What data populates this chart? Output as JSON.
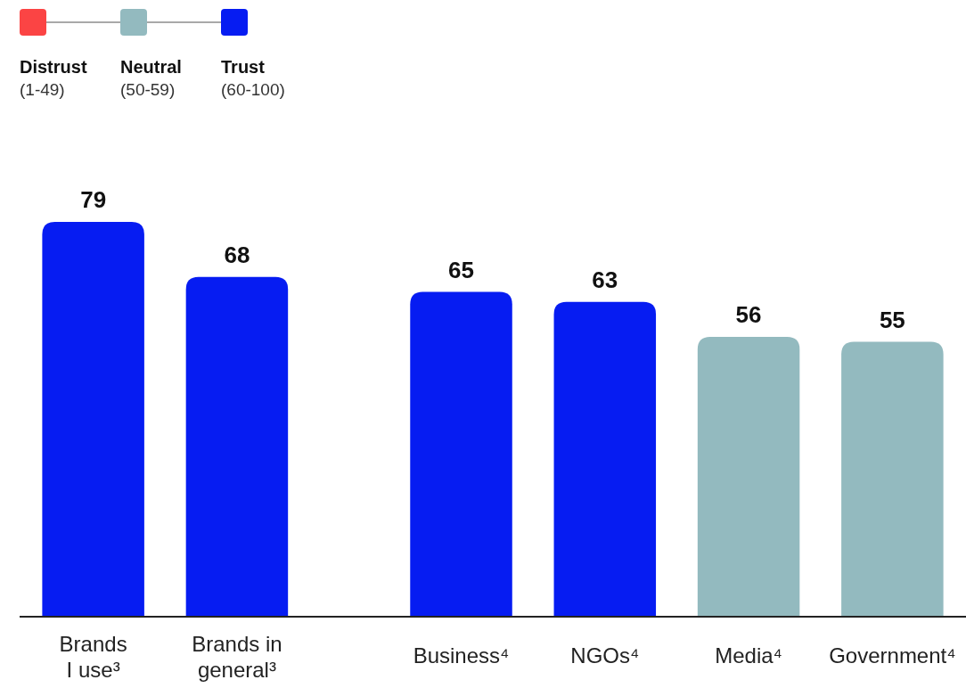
{
  "chart_data": {
    "type": "bar",
    "stacked": true,
    "categories": [
      "Brands I use³",
      "Brands in general³",
      null,
      "Business⁴",
      "NGOs⁴",
      "Media⁴",
      "Government⁴"
    ],
    "series": [
      {
        "name": "Distrust (1-49)",
        "color": "#fb4444",
        "values": [
          null,
          null,
          null,
          null,
          null,
          null,
          null
        ]
      },
      {
        "name": "Neutral (50-59)",
        "color": "#93babf",
        "values": [
          null,
          null,
          null,
          null,
          null,
          56,
          55
        ]
      },
      {
        "name": "Trust (60-100)",
        "color": "#061cf2",
        "values": [
          79,
          68,
          null,
          65,
          63,
          null,
          null
        ]
      }
    ],
    "data_labels": true,
    "legend": "top left"
  }
}
